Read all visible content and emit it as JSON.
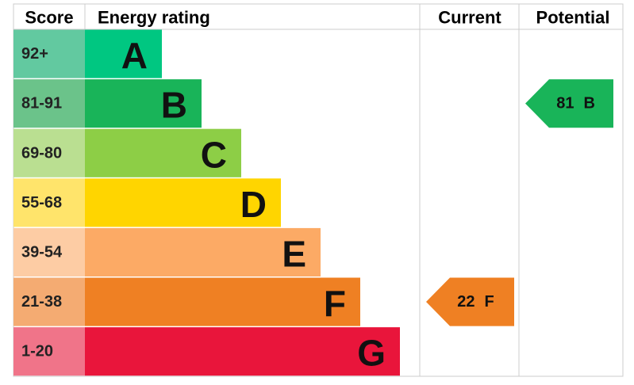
{
  "headers": {
    "score": "Score",
    "rating": "Energy rating",
    "current": "Current",
    "potential": "Potential"
  },
  "bands": [
    {
      "score": "92+",
      "letter": "A",
      "color": "#00c781",
      "score_color": "#62c9a0"
    },
    {
      "score": "81-91",
      "letter": "B",
      "color": "#19b459",
      "score_color": "#6bc38a"
    },
    {
      "score": "69-80",
      "letter": "C",
      "color": "#8dce46",
      "score_color": "#badf91"
    },
    {
      "score": "55-68",
      "letter": "D",
      "color": "#ffd500",
      "score_color": "#ffe46b"
    },
    {
      "score": "39-54",
      "letter": "E",
      "color": "#fcaa65",
      "score_color": "#fdcca4"
    },
    {
      "score": "21-38",
      "letter": "F",
      "color": "#ef8023",
      "score_color": "#f4ab72"
    },
    {
      "score": "1-20",
      "letter": "G",
      "color": "#e9153b",
      "score_color": "#f07489"
    }
  ],
  "current": {
    "value": 22,
    "rating": "F"
  },
  "potential": {
    "value": 81,
    "rating": "B"
  }
}
